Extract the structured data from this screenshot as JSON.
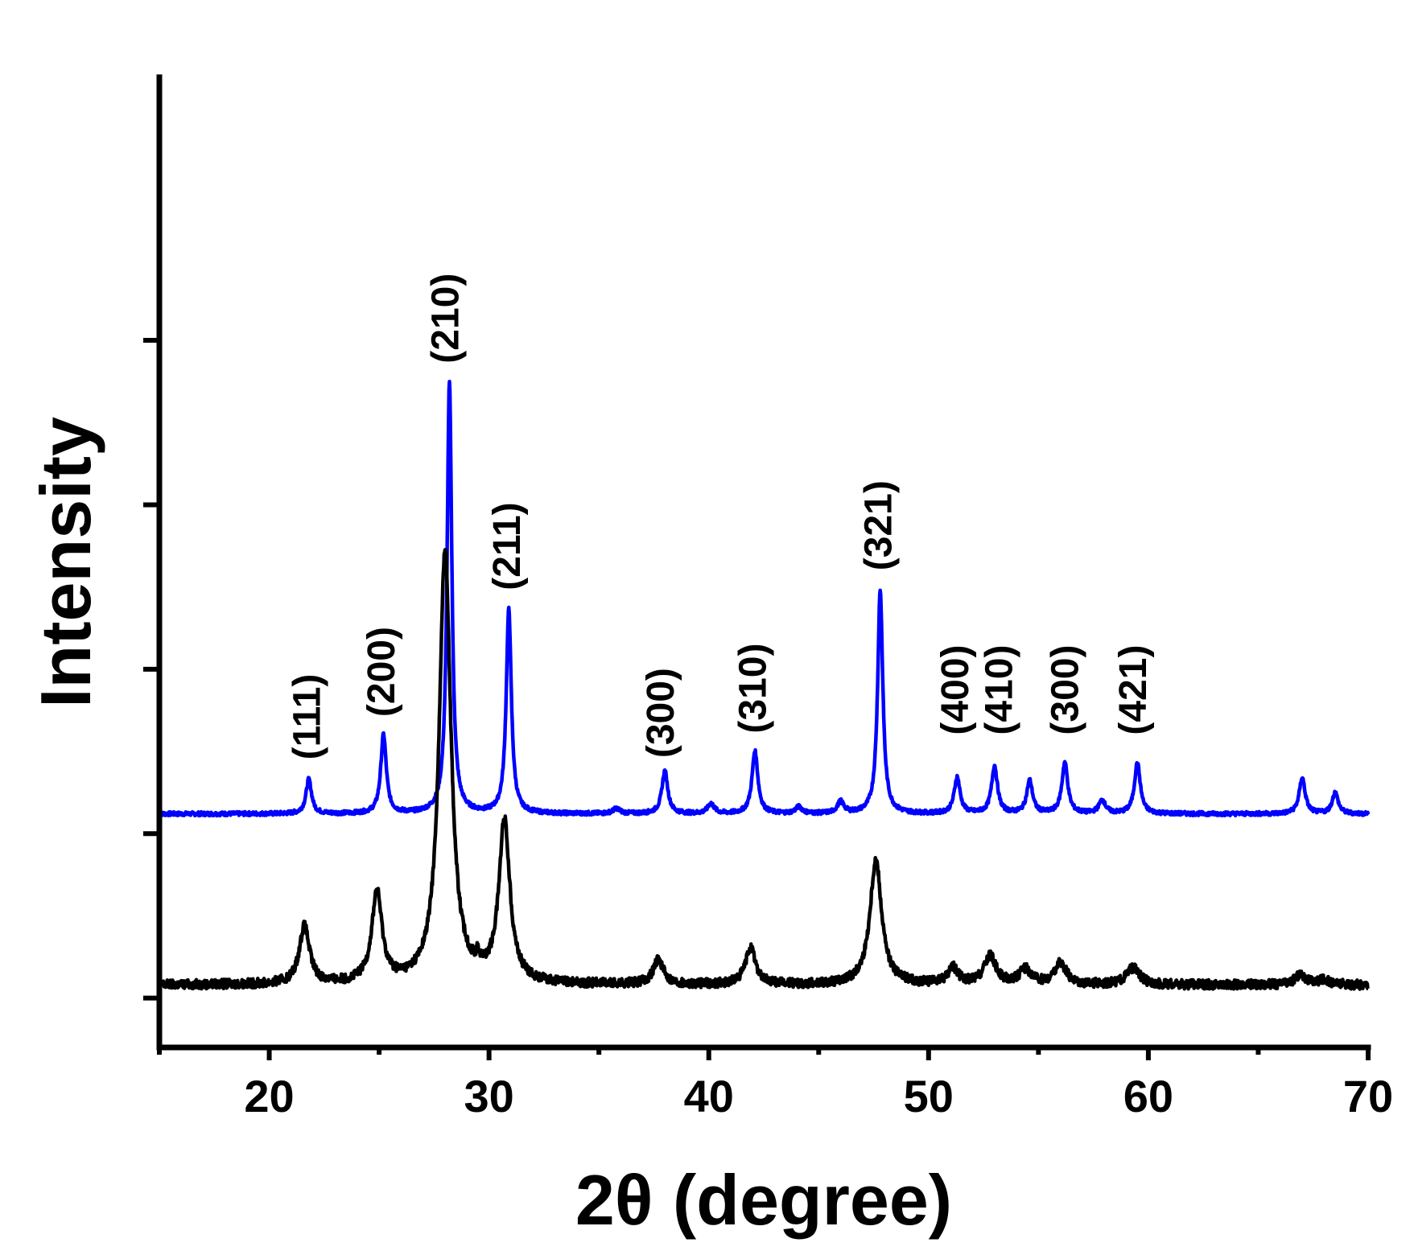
{
  "chart_data": {
    "type": "line",
    "title": "",
    "xlabel": "2θ (degree)",
    "ylabel": "Intensity",
    "xlim": [
      15,
      70
    ],
    "ylim": [
      -0.3,
      5.6
    ],
    "xticks": [
      20,
      30,
      40,
      50,
      60,
      70
    ],
    "y_tick_values": [
      0,
      1,
      2,
      3,
      4
    ],
    "y_tick_labels_visible": false,
    "grid": false,
    "legend": "none",
    "series": [
      {
        "color": "#0000ff",
        "baseline": 1.12,
        "peaks": [
          {
            "x": 21.8,
            "h": 0.21,
            "w": 0.15
          },
          {
            "x": 25.2,
            "h": 0.48,
            "w": 0.15
          },
          {
            "x": 28.2,
            "h": 2.62,
            "w": 0.13
          },
          {
            "x": 30.9,
            "h": 1.24,
            "w": 0.14
          },
          {
            "x": 35.8,
            "h": 0.03,
            "w": 0.2
          },
          {
            "x": 38.0,
            "h": 0.26,
            "w": 0.16
          },
          {
            "x": 40.1,
            "h": 0.06,
            "w": 0.18
          },
          {
            "x": 42.1,
            "h": 0.38,
            "w": 0.16
          },
          {
            "x": 44.1,
            "h": 0.04,
            "w": 0.18
          },
          {
            "x": 46.0,
            "h": 0.07,
            "w": 0.18
          },
          {
            "x": 47.8,
            "h": 1.36,
            "w": 0.14
          },
          {
            "x": 51.3,
            "h": 0.22,
            "w": 0.16
          },
          {
            "x": 53.0,
            "h": 0.29,
            "w": 0.16
          },
          {
            "x": 54.6,
            "h": 0.2,
            "w": 0.16
          },
          {
            "x": 56.2,
            "h": 0.31,
            "w": 0.16
          },
          {
            "x": 57.9,
            "h": 0.08,
            "w": 0.18
          },
          {
            "x": 59.5,
            "h": 0.31,
            "w": 0.16
          },
          {
            "x": 67.0,
            "h": 0.22,
            "w": 0.16
          },
          {
            "x": 68.5,
            "h": 0.13,
            "w": 0.16
          }
        ]
      },
      {
        "color": "#000000",
        "baseline": 0.08,
        "peaks": [
          {
            "x": 21.6,
            "h": 0.35,
            "w": 0.28
          },
          {
            "x": 24.9,
            "h": 0.55,
            "w": 0.28
          },
          {
            "x": 28.0,
            "h": 2.64,
            "w": 0.32
          },
          {
            "x": 29.5,
            "h": 0.06,
            "w": 0.1
          },
          {
            "x": 30.7,
            "h": 0.98,
            "w": 0.3
          },
          {
            "x": 37.7,
            "h": 0.15,
            "w": 0.28
          },
          {
            "x": 41.9,
            "h": 0.22,
            "w": 0.28
          },
          {
            "x": 47.6,
            "h": 0.76,
            "w": 0.32
          },
          {
            "x": 51.1,
            "h": 0.1,
            "w": 0.28
          },
          {
            "x": 52.8,
            "h": 0.17,
            "w": 0.32
          },
          {
            "x": 54.4,
            "h": 0.09,
            "w": 0.32
          },
          {
            "x": 56.0,
            "h": 0.13,
            "w": 0.32
          },
          {
            "x": 59.3,
            "h": 0.1,
            "w": 0.35
          },
          {
            "x": 66.9,
            "h": 0.06,
            "w": 0.3
          },
          {
            "x": 68.0,
            "h": 0.03,
            "w": 0.3
          }
        ]
      }
    ],
    "annotations": [
      {
        "text": "(111)",
        "x": 22.3,
        "y": 1.45
      },
      {
        "text": "(200)",
        "x": 25.7,
        "y": 1.71
      },
      {
        "text": "(210)",
        "x": 28.6,
        "y": 3.86
      },
      {
        "text": "(211)",
        "x": 31.4,
        "y": 2.48
      },
      {
        "text": "(300)",
        "x": 38.4,
        "y": 1.46
      },
      {
        "text": "(310)",
        "x": 42.6,
        "y": 1.61
      },
      {
        "text": "(321)",
        "x": 48.3,
        "y": 2.6
      },
      {
        "text": "(400)",
        "x": 51.8,
        "y": 1.6
      },
      {
        "text": "(410)",
        "x": 53.8,
        "y": 1.6
      },
      {
        "text": "(300)",
        "x": 56.8,
        "y": 1.6
      },
      {
        "text": "(421)",
        "x": 59.9,
        "y": 1.6
      }
    ]
  }
}
